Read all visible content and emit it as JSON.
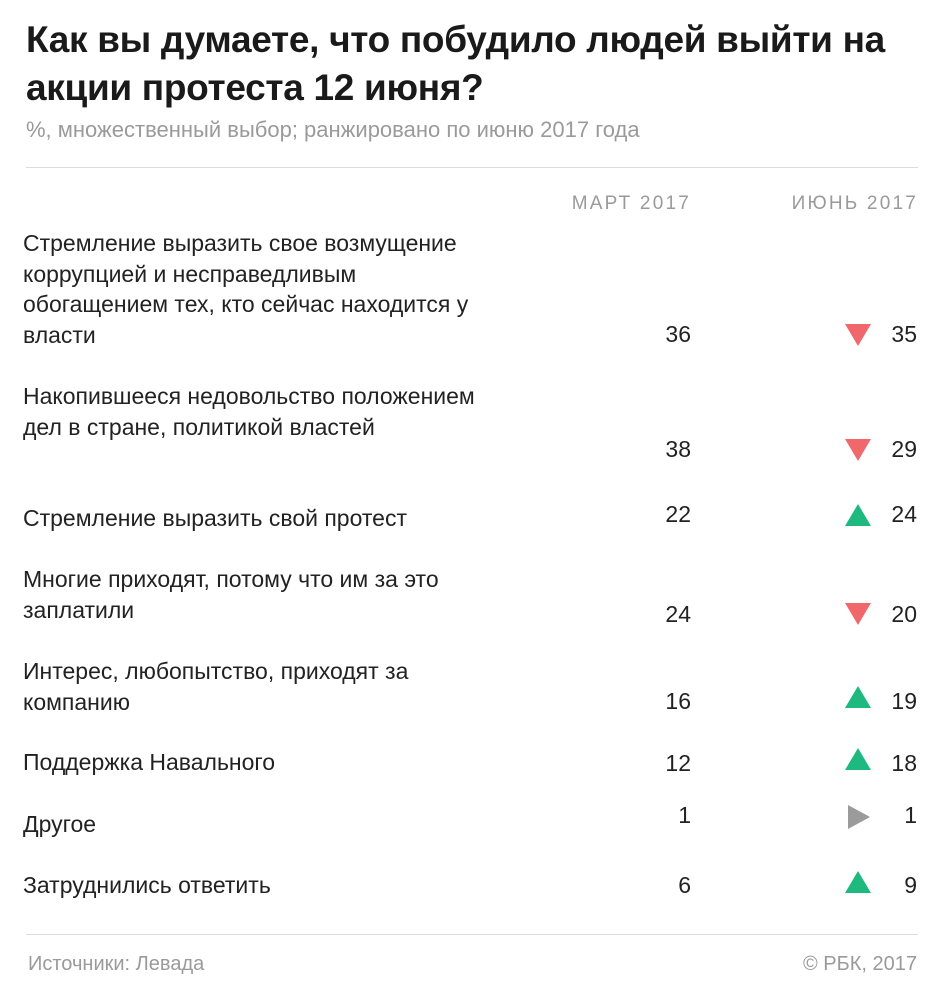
{
  "header": {
    "title": "Как вы думаете, что побудило людей выйти на акции протеста 12 июня?",
    "subtitle": "%, множественный выбор; ранжировано по июню 2017 года"
  },
  "columns": {
    "march": "МАРТ 2017",
    "june": "ИЮНЬ 2017"
  },
  "footer": {
    "source": "Источники: Левада",
    "copyright": "© РБК, 2017"
  },
  "colors": {
    "down": "#f0686b",
    "up": "#1db97f",
    "same": "#9b9b9b"
  },
  "chart_data": {
    "type": "table",
    "title": "Как вы думаете, что побудило людей выйти на акции протеста 12 июня?",
    "subtitle": "%, множественный выбор; ранжировано по июню 2017 года",
    "columns": [
      "МАРТ 2017",
      "ИЮНЬ 2017"
    ],
    "rows": [
      {
        "label": "Стремление выразить свое возмущение коррупцией и несправедливым обогащением тех, кто сейчас находится у власти",
        "march": 36,
        "june": 35,
        "trend": "down"
      },
      {
        "label": "Накопившееся недовольство положением дел в стране, политикой властей",
        "march": 38,
        "june": 29,
        "trend": "down"
      },
      {
        "label": "Стремление выразить свой протест",
        "march": 22,
        "june": 24,
        "trend": "up"
      },
      {
        "label": "Многие приходят, потому что им за это заплатили",
        "march": 24,
        "june": 20,
        "trend": "down"
      },
      {
        "label": "Интерес, любопытство, приходят за компанию",
        "march": 16,
        "june": 19,
        "trend": "up"
      },
      {
        "label": "Поддержка Навального",
        "march": 12,
        "june": 18,
        "trend": "up"
      },
      {
        "label": "Другое",
        "march": 1,
        "june": 1,
        "trend": "same"
      },
      {
        "label": "Затруднились ответить",
        "march": 6,
        "june": 9,
        "trend": "up"
      }
    ]
  }
}
